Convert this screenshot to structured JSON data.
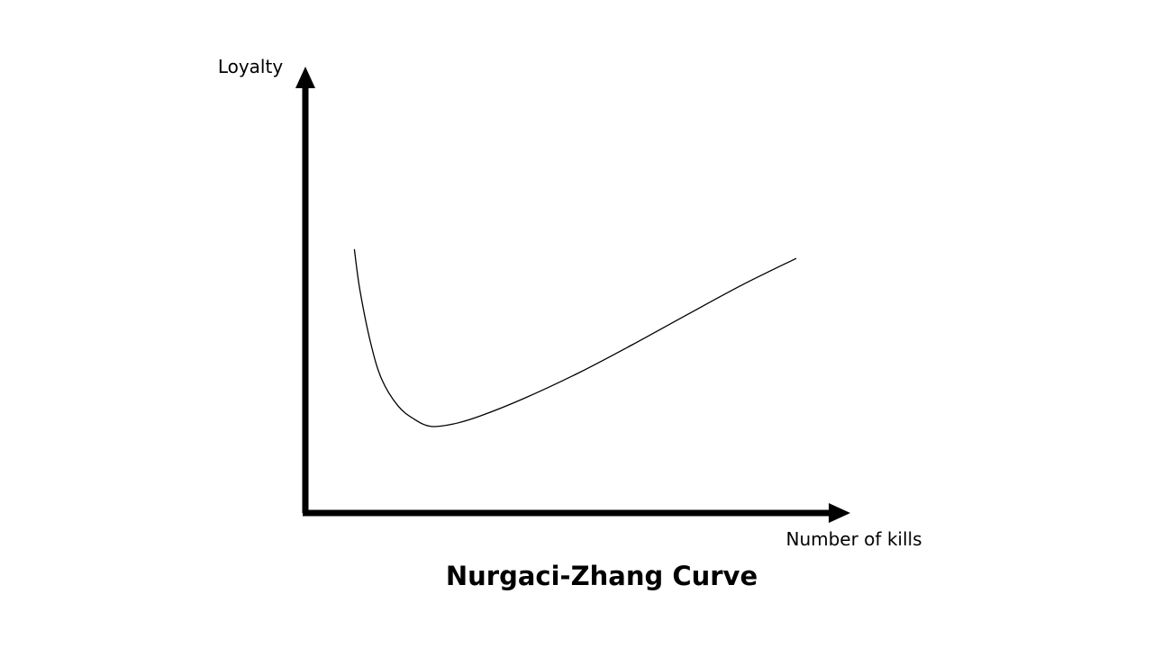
{
  "chart_data": {
    "type": "line",
    "title": "Nurgaci-Zhang Curve",
    "xlabel": "Number of kills",
    "ylabel": "Loyalty",
    "grid": false,
    "legend": "none",
    "ticks": "none",
    "colors": {
      "axis": "#000000",
      "line": "#000000",
      "background": "#ffffff"
    },
    "xlim": [
      0,
      100
    ],
    "ylim": [
      0,
      100
    ],
    "series": [
      {
        "points": [
          [
            9,
            59
          ],
          [
            10,
            50
          ],
          [
            12,
            38
          ],
          [
            14,
            30
          ],
          [
            17,
            24
          ],
          [
            20,
            21
          ],
          [
            23,
            19.4
          ],
          [
            27,
            19.9
          ],
          [
            32,
            21.7
          ],
          [
            40,
            25.6
          ],
          [
            50,
            31.3
          ],
          [
            60,
            37.7
          ],
          [
            70,
            44.4
          ],
          [
            80,
            51.0
          ],
          [
            90,
            57.0
          ]
        ]
      }
    ]
  }
}
